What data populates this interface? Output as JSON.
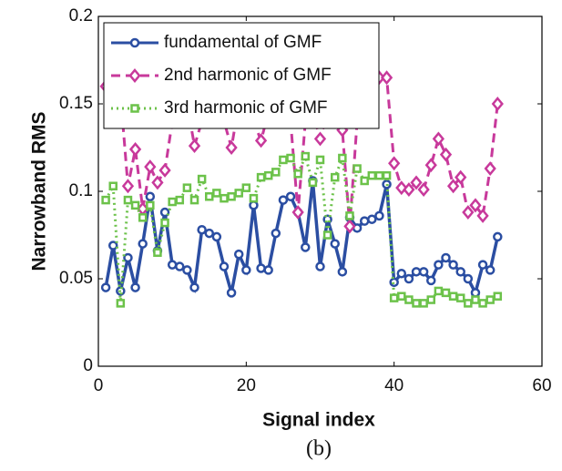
{
  "chart_data": {
    "type": "line",
    "xlabel": "Signal index",
    "ylabel": "Narrowband RMS",
    "caption": "(b)",
    "x": [
      1,
      2,
      3,
      4,
      5,
      6,
      7,
      8,
      9,
      10,
      11,
      12,
      13,
      14,
      15,
      16,
      17,
      18,
      19,
      20,
      21,
      22,
      23,
      24,
      25,
      26,
      27,
      28,
      29,
      30,
      31,
      32,
      33,
      34,
      35,
      36,
      37,
      38,
      39,
      40,
      41,
      42,
      43,
      44,
      45,
      46,
      47,
      48,
      49,
      50,
      51,
      52,
      53,
      54
    ],
    "xlim": [
      0,
      60
    ],
    "xticks": [
      0,
      20,
      40,
      60
    ],
    "ylim": [
      0,
      0.2
    ],
    "yticks": [
      0,
      0.05,
      0.1,
      0.15,
      0.2
    ],
    "legend": "upper left",
    "series": [
      {
        "name": "fundamental of GMF",
        "color": "#2b4ea2",
        "linestyle": "solid",
        "marker": "circle",
        "values": [
          0.045,
          0.069,
          0.043,
          0.062,
          0.045,
          0.07,
          0.097,
          0.066,
          0.088,
          0.058,
          0.057,
          0.055,
          0.045,
          0.078,
          0.076,
          0.074,
          0.057,
          0.042,
          0.064,
          0.055,
          0.092,
          0.056,
          0.055,
          0.076,
          0.095,
          0.097,
          0.088,
          0.068,
          0.106,
          0.057,
          0.084,
          0.07,
          0.054,
          0.085,
          0.079,
          0.083,
          0.084,
          0.086,
          0.104,
          0.048,
          0.053,
          0.05,
          0.054,
          0.054,
          0.049,
          0.058,
          0.062,
          0.058,
          0.054,
          0.05,
          0.042,
          0.058,
          0.055,
          0.074
        ]
      },
      {
        "name": "2nd harmonic of GMF",
        "color": "#c8399b",
        "linestyle": "dashed",
        "marker": "diamond",
        "values": [
          0.16,
          0.15,
          0.155,
          0.103,
          0.124,
          0.09,
          0.114,
          0.105,
          0.112,
          0.14,
          0.145,
          0.15,
          0.126,
          0.14,
          0.15,
          0.145,
          0.14,
          0.125,
          0.15,
          0.145,
          0.14,
          0.129,
          0.145,
          0.15,
          0.14,
          0.14,
          0.088,
          0.14,
          0.145,
          0.13,
          0.145,
          0.14,
          0.135,
          0.08,
          0.14,
          0.15,
          0.155,
          0.165,
          0.165,
          0.116,
          0.102,
          0.101,
          0.105,
          0.101,
          0.115,
          0.13,
          0.121,
          0.103,
          0.108,
          0.088,
          0.092,
          0.086,
          0.113,
          0.15
        ]
      },
      {
        "name": "3rd harmonic of GMF",
        "color": "#6cc24a",
        "linestyle": "dotted",
        "marker": "square",
        "values": [
          0.095,
          0.103,
          0.036,
          0.095,
          0.092,
          0.085,
          0.092,
          0.065,
          0.082,
          0.094,
          0.095,
          0.102,
          0.095,
          0.107,
          0.097,
          0.099,
          0.096,
          0.097,
          0.099,
          0.102,
          0.096,
          0.108,
          0.109,
          0.111,
          0.118,
          0.119,
          0.11,
          0.12,
          0.105,
          0.118,
          0.075,
          0.108,
          0.119,
          0.086,
          0.113,
          0.106,
          0.109,
          0.109,
          0.109,
          0.039,
          0.04,
          0.038,
          0.036,
          0.036,
          0.038,
          0.043,
          0.042,
          0.04,
          0.039,
          0.036,
          0.038,
          0.036,
          0.038,
          0.04
        ]
      }
    ]
  }
}
